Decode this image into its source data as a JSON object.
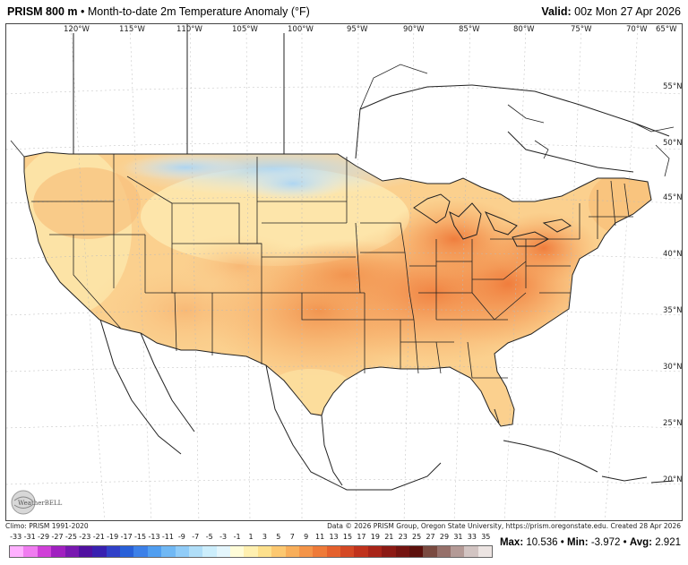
{
  "header": {
    "product": "PRISM 800 m",
    "bullet": "•",
    "description": "Month-to-date 2m Temperature Anomaly (°F)",
    "valid_label": "Valid:",
    "valid_value": "00z Mon 27 Apr 2026"
  },
  "map": {
    "lon_labels": [
      "120°W",
      "115°W",
      "110°W",
      "105°W",
      "100°W",
      "95°W",
      "90°W",
      "85°W",
      "80°W",
      "75°W",
      "70°W",
      "65°W"
    ],
    "lat_labels": [
      "55°N",
      "50°N",
      "45°N",
      "40°N",
      "35°N",
      "30°N",
      "25°N",
      "20°N"
    ],
    "ocean_color": "#ffffff",
    "border_color": "#222222"
  },
  "logo": {
    "text": "WeatherBELL"
  },
  "footer": {
    "climo": "Climo: PRISM 1991-2020",
    "credit": "Data © 2026 PRISM Group, Oregon State University, https://prism.oregonstate.edu. Created 28 Apr 2026"
  },
  "colorbar": {
    "labels": [
      "-33",
      "-31",
      "-29",
      "-27",
      "-25",
      "-23",
      "-21",
      "-19",
      "-17",
      "-15",
      "-13",
      "-11",
      "-9",
      "-7",
      "-5",
      "-3",
      "-1",
      "1",
      "3",
      "5",
      "7",
      "9",
      "11",
      "13",
      "15",
      "17",
      "19",
      "21",
      "23",
      "25",
      "27",
      "29",
      "31",
      "33",
      "35"
    ],
    "colors": [
      "#ffb0ff",
      "#f07cf0",
      "#d040d8",
      "#a020c0",
      "#7818b0",
      "#5010a0",
      "#3820b0",
      "#3040c8",
      "#2860d8",
      "#3c80e8",
      "#509ef0",
      "#70b8f4",
      "#90ccf8",
      "#b0def8",
      "#cceefc",
      "#e4f6fc",
      "#fffcd8",
      "#fff0b0",
      "#fde08c",
      "#fcc870",
      "#f8ae5a",
      "#f49448",
      "#ee7a38",
      "#e4602c",
      "#d44824",
      "#c0321c",
      "#a82418",
      "#8c1a14",
      "#741410",
      "#5c100c",
      "#7a4a40",
      "#96706a",
      "#b49a96",
      "#d2c4c2",
      "#ece4e2"
    ]
  },
  "stats": {
    "max_label": "Max:",
    "max_value": "10.536",
    "min_label": "Min:",
    "min_value": "-3.972",
    "avg_label": "Avg:",
    "avg_value": "2.921",
    "sep": "•"
  }
}
